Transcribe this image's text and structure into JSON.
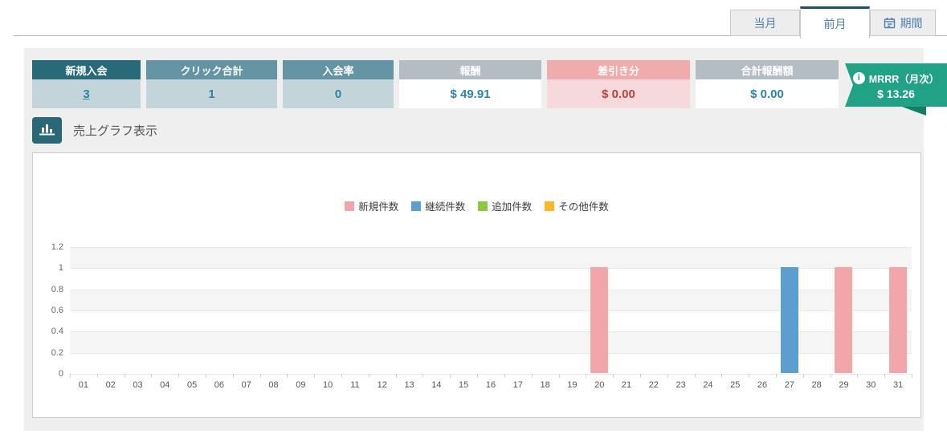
{
  "tabs": [
    {
      "label": "当月",
      "active": false
    },
    {
      "label": "前月",
      "active": true
    },
    {
      "label": "期間",
      "active": false,
      "icon": "calendar-icon"
    }
  ],
  "stats": [
    {
      "label": "新規入会",
      "value": "3",
      "link": true
    },
    {
      "label": "クリック合計",
      "value": "1",
      "link": false
    },
    {
      "label": "入会率",
      "value": "0",
      "link": false
    },
    {
      "label": "報酬",
      "value": "$ 49.91",
      "link": false
    },
    {
      "label": "差引き分",
      "value": "$ 0.00",
      "link": false
    },
    {
      "label": "合計報酬額",
      "value": "$ 0.00",
      "link": false
    }
  ],
  "mrr_badge": {
    "label": "MRRR（月次）",
    "value": "$ 13.26",
    "color": "#21a287"
  },
  "graph_section": {
    "label": "売上グラフ表示"
  },
  "chart_data": {
    "type": "bar",
    "title": "",
    "xlabel": "",
    "ylabel": "",
    "ylim": [
      0,
      1.2
    ],
    "yticks": [
      0,
      0.2,
      0.4,
      0.6,
      0.8,
      1,
      1.2
    ],
    "grid": true,
    "legend_position": "top-center",
    "categories": [
      "01",
      "02",
      "03",
      "04",
      "05",
      "06",
      "07",
      "08",
      "09",
      "10",
      "11",
      "12",
      "13",
      "14",
      "15",
      "16",
      "17",
      "18",
      "19",
      "20",
      "21",
      "22",
      "23",
      "24",
      "25",
      "26",
      "27",
      "28",
      "29",
      "30",
      "31"
    ],
    "series": [
      {
        "name": "新規件数",
        "color": "#f1a6ab",
        "values": [
          0,
          0,
          0,
          0,
          0,
          0,
          0,
          0,
          0,
          0,
          0,
          0,
          0,
          0,
          0,
          0,
          0,
          0,
          0,
          1,
          0,
          0,
          0,
          0,
          0,
          0,
          0,
          0,
          1,
          0,
          1
        ]
      },
      {
        "name": "継続件数",
        "color": "#5a9fd0",
        "values": [
          0,
          0,
          0,
          0,
          0,
          0,
          0,
          0,
          0,
          0,
          0,
          0,
          0,
          0,
          0,
          0,
          0,
          0,
          0,
          0,
          0,
          0,
          0,
          0,
          0,
          0,
          1,
          0,
          0,
          0,
          0
        ]
      },
      {
        "name": "追加件数",
        "color": "#8dc63f",
        "values": [
          0,
          0,
          0,
          0,
          0,
          0,
          0,
          0,
          0,
          0,
          0,
          0,
          0,
          0,
          0,
          0,
          0,
          0,
          0,
          0,
          0,
          0,
          0,
          0,
          0,
          0,
          0,
          0,
          0,
          0,
          0
        ]
      },
      {
        "name": "その他件数",
        "color": "#fbb629",
        "values": [
          0,
          0,
          0,
          0,
          0,
          0,
          0,
          0,
          0,
          0,
          0,
          0,
          0,
          0,
          0,
          0,
          0,
          0,
          0,
          0,
          0,
          0,
          0,
          0,
          0,
          0,
          0,
          0,
          0,
          0,
          0
        ]
      }
    ]
  }
}
